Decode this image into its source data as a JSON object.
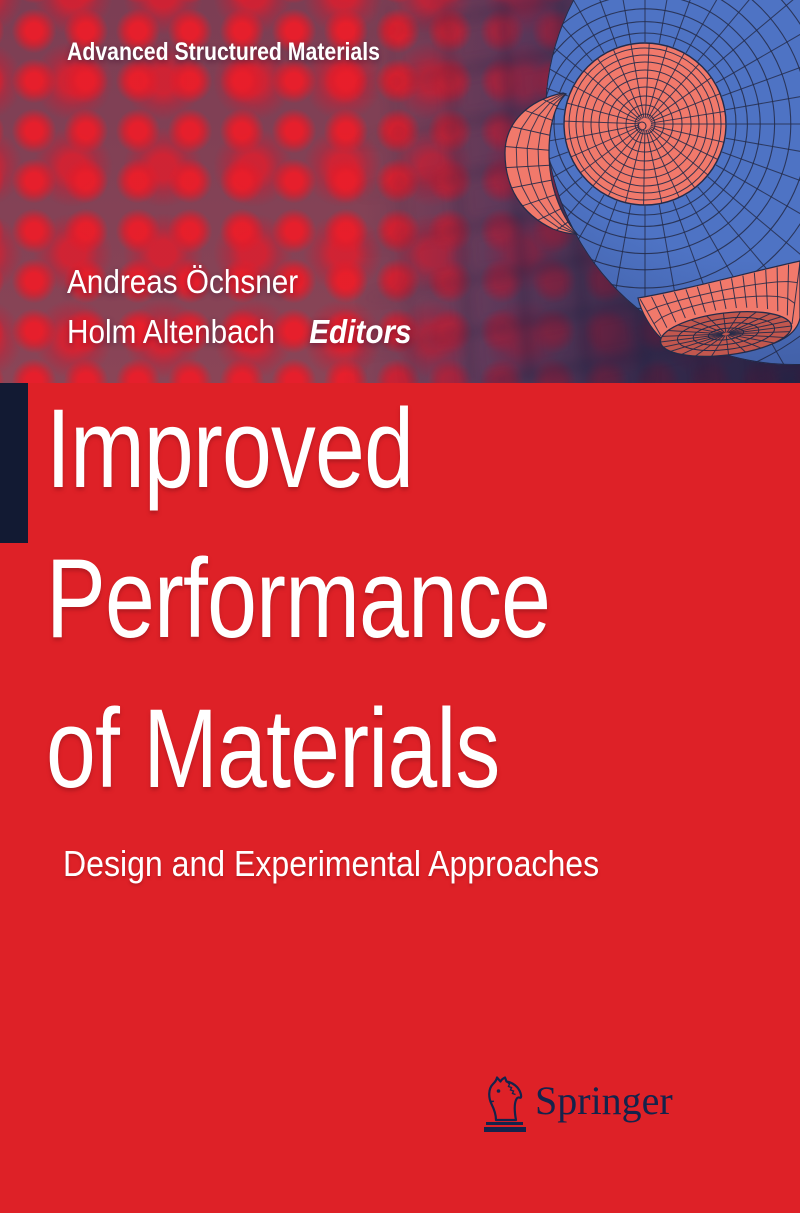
{
  "cover": {
    "series_title": "Advanced Structured Materials",
    "editors": {
      "name1": "Andreas Öchsner",
      "name2": "Holm Altenbach",
      "role_label": "Editors"
    },
    "title": {
      "line1": "Improved",
      "line2": "Performance",
      "line3": "of Materials"
    },
    "subtitle": "Design and Experimental Approaches",
    "publisher": "Springer"
  },
  "artwork": {
    "description": "Finite-element mesh sphere with salmon cylindrical inclusions over a defocused red mesh background",
    "sphere_blue": "#4E73C4",
    "inclusion_salmon": "#F1796B",
    "cap_salmon_dark": "#C2574E",
    "mesh_line": "#242B49"
  },
  "colors": {
    "cover_red": "#DE2127",
    "navy": "#14234B",
    "accent_bar_navy": "#121A33",
    "text_white": "#FFFFFF"
  }
}
